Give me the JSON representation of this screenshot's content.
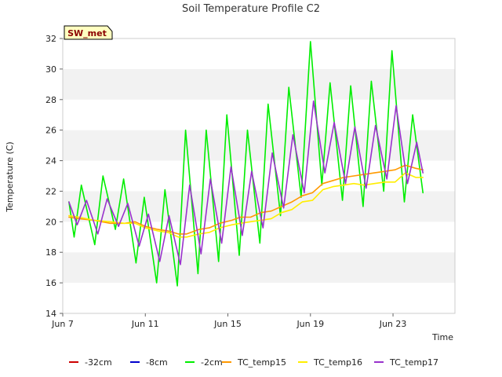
{
  "chart_data": {
    "type": "line",
    "title": "Soil Temperature Profile C2",
    "xlabel": "Time",
    "ylabel": "Temperature (C)",
    "site_tag": "SW_met",
    "x_range": [
      "Jun 7",
      "Jun 26"
    ],
    "x_ticks": [
      {
        "day": 7,
        "label": "Jun 7"
      },
      {
        "day": 11,
        "label": "Jun 11"
      },
      {
        "day": 15,
        "label": "Jun 15"
      },
      {
        "day": 19,
        "label": "Jun 19"
      },
      {
        "day": 23,
        "label": "Jun 23"
      }
    ],
    "ylim": [
      14,
      32
    ],
    "y_ticks": [
      14,
      16,
      18,
      20,
      22,
      24,
      26,
      28,
      30,
      32
    ],
    "grid": "horizontal alternating bands",
    "legend_position": "bottom",
    "series": [
      {
        "name": "-32cm",
        "color": "#cc0000",
        "points": []
      },
      {
        "name": "-8cm",
        "color": "#0000cc",
        "points": []
      },
      {
        "name": "-2cm",
        "color": "#00ee00",
        "points": [
          [
            7.3,
            21.3
          ],
          [
            7.55,
            19.0
          ],
          [
            7.9,
            22.4
          ],
          [
            8.55,
            18.5
          ],
          [
            8.95,
            23.0
          ],
          [
            9.55,
            19.5
          ],
          [
            9.95,
            22.8
          ],
          [
            10.55,
            17.3
          ],
          [
            10.95,
            21.6
          ],
          [
            11.55,
            16.0
          ],
          [
            11.95,
            22.1
          ],
          [
            12.55,
            15.8
          ],
          [
            12.95,
            26.0
          ],
          [
            13.55,
            16.6
          ],
          [
            13.95,
            26.0
          ],
          [
            14.55,
            17.4
          ],
          [
            14.95,
            27.0
          ],
          [
            15.55,
            17.8
          ],
          [
            15.95,
            26.0
          ],
          [
            16.55,
            18.6
          ],
          [
            16.95,
            27.7
          ],
          [
            17.55,
            20.4
          ],
          [
            17.95,
            28.8
          ],
          [
            18.55,
            21.6
          ],
          [
            19.0,
            31.8
          ],
          [
            19.55,
            22.4
          ],
          [
            19.95,
            29.1
          ],
          [
            20.55,
            21.4
          ],
          [
            20.95,
            28.9
          ],
          [
            21.55,
            21.0
          ],
          [
            21.95,
            29.2
          ],
          [
            22.55,
            22.0
          ],
          [
            22.95,
            31.2
          ],
          [
            23.55,
            21.3
          ],
          [
            23.95,
            27.0
          ],
          [
            24.45,
            21.9
          ]
        ]
      },
      {
        "name": "TC_temp15",
        "color": "#ff9900",
        "points": [
          [
            7.3,
            20.3
          ],
          [
            7.8,
            20.2
          ],
          [
            8.5,
            20.1
          ],
          [
            9.3,
            19.9
          ],
          [
            10.0,
            19.9
          ],
          [
            10.5,
            20.0
          ],
          [
            11.0,
            19.7
          ],
          [
            11.6,
            19.5
          ],
          [
            12.1,
            19.4
          ],
          [
            12.6,
            19.2
          ],
          [
            13.0,
            19.2
          ],
          [
            13.6,
            19.5
          ],
          [
            14.1,
            19.6
          ],
          [
            14.6,
            19.9
          ],
          [
            15.2,
            20.1
          ],
          [
            15.6,
            20.3
          ],
          [
            16.1,
            20.3
          ],
          [
            16.6,
            20.6
          ],
          [
            17.1,
            20.7
          ],
          [
            17.6,
            21.0
          ],
          [
            18.1,
            21.3
          ],
          [
            18.6,
            21.7
          ],
          [
            19.1,
            21.9
          ],
          [
            19.6,
            22.5
          ],
          [
            20.1,
            22.7
          ],
          [
            20.6,
            22.9
          ],
          [
            21.1,
            23.0
          ],
          [
            21.6,
            23.1
          ],
          [
            22.1,
            23.2
          ],
          [
            22.6,
            23.3
          ],
          [
            23.1,
            23.4
          ],
          [
            23.6,
            23.7
          ],
          [
            24.1,
            23.5
          ],
          [
            24.45,
            23.4
          ]
        ]
      },
      {
        "name": "TC_temp16",
        "color": "#ffee00",
        "points": [
          [
            7.3,
            20.4
          ],
          [
            7.8,
            20.3
          ],
          [
            8.5,
            20.1
          ],
          [
            9.3,
            20.0
          ],
          [
            10.0,
            19.9
          ],
          [
            10.5,
            19.9
          ],
          [
            11.0,
            19.6
          ],
          [
            11.6,
            19.4
          ],
          [
            12.1,
            19.3
          ],
          [
            12.6,
            19.0
          ],
          [
            13.0,
            19.0
          ],
          [
            13.6,
            19.2
          ],
          [
            14.1,
            19.3
          ],
          [
            14.6,
            19.6
          ],
          [
            15.2,
            19.8
          ],
          [
            15.6,
            19.9
          ],
          [
            16.1,
            20.0
          ],
          [
            16.6,
            20.1
          ],
          [
            17.1,
            20.2
          ],
          [
            17.6,
            20.6
          ],
          [
            18.1,
            20.8
          ],
          [
            18.6,
            21.3
          ],
          [
            19.1,
            21.4
          ],
          [
            19.6,
            22.1
          ],
          [
            20.1,
            22.3
          ],
          [
            20.6,
            22.4
          ],
          [
            21.1,
            22.5
          ],
          [
            21.6,
            22.4
          ],
          [
            22.1,
            22.5
          ],
          [
            22.6,
            22.6
          ],
          [
            23.1,
            22.6
          ],
          [
            23.6,
            23.2
          ],
          [
            24.1,
            22.9
          ],
          [
            24.45,
            22.9
          ]
        ]
      },
      {
        "name": "TC_temp17",
        "color": "#9932cc",
        "points": [
          [
            7.3,
            21.3
          ],
          [
            7.7,
            19.8
          ],
          [
            8.15,
            21.4
          ],
          [
            8.7,
            19.2
          ],
          [
            9.15,
            21.5
          ],
          [
            9.7,
            19.7
          ],
          [
            10.15,
            21.2
          ],
          [
            10.7,
            18.4
          ],
          [
            11.15,
            20.5
          ],
          [
            11.7,
            17.4
          ],
          [
            12.15,
            20.4
          ],
          [
            12.7,
            17.2
          ],
          [
            13.15,
            22.4
          ],
          [
            13.7,
            17.9
          ],
          [
            14.15,
            22.8
          ],
          [
            14.7,
            18.6
          ],
          [
            15.15,
            23.6
          ],
          [
            15.7,
            19.1
          ],
          [
            16.15,
            23.3
          ],
          [
            16.7,
            19.6
          ],
          [
            17.15,
            24.5
          ],
          [
            17.7,
            20.9
          ],
          [
            18.15,
            25.7
          ],
          [
            18.7,
            21.9
          ],
          [
            19.15,
            27.9
          ],
          [
            19.7,
            23.2
          ],
          [
            20.15,
            26.5
          ],
          [
            20.7,
            22.5
          ],
          [
            21.15,
            26.2
          ],
          [
            21.7,
            22.2
          ],
          [
            22.15,
            26.3
          ],
          [
            22.7,
            22.8
          ],
          [
            23.15,
            27.6
          ],
          [
            23.7,
            22.5
          ],
          [
            24.15,
            25.2
          ],
          [
            24.45,
            23.2
          ]
        ]
      }
    ]
  }
}
